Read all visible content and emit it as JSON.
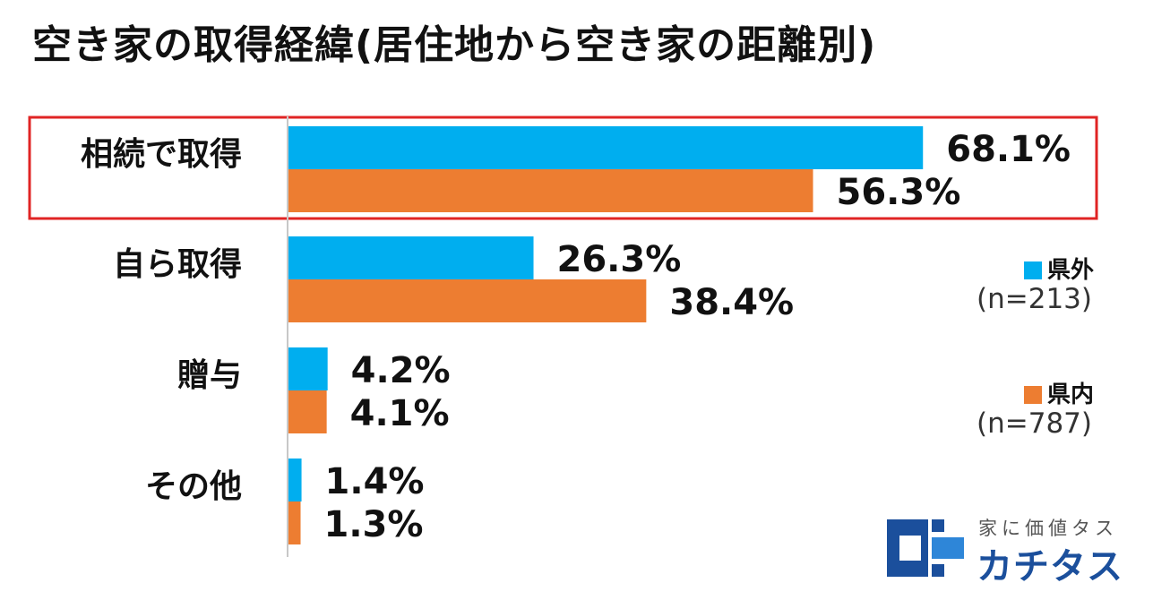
{
  "chart_data": {
    "type": "bar",
    "orientation": "horizontal",
    "title": "空き家の取得経緯(居住地から空き家の距離別)",
    "categories": [
      "相続で取得",
      "自ら取得",
      "贈与",
      "その他"
    ],
    "series": [
      {
        "name": "県外",
        "n_label": "(n=213)",
        "color": "#00AEEF",
        "values": [
          68.1,
          26.3,
          4.2,
          1.4
        ],
        "labels": [
          "68.1%",
          "26.3%",
          "4.2%",
          "1.4%"
        ]
      },
      {
        "name": "県内",
        "n_label": "(n=787)",
        "color": "#ED7D31",
        "values": [
          56.3,
          38.4,
          4.1,
          1.3
        ],
        "labels": [
          "56.3%",
          "38.4%",
          "4.1%",
          "1.3%"
        ]
      }
    ],
    "xlim": [
      0,
      100
    ],
    "grid": false,
    "legend_position": "right",
    "highlight_category": "相続で取得",
    "highlight_color": "#E02424"
  },
  "logo": {
    "tagline": "家に価値タス",
    "name": "カチタス",
    "color": "#1B4F9C"
  }
}
